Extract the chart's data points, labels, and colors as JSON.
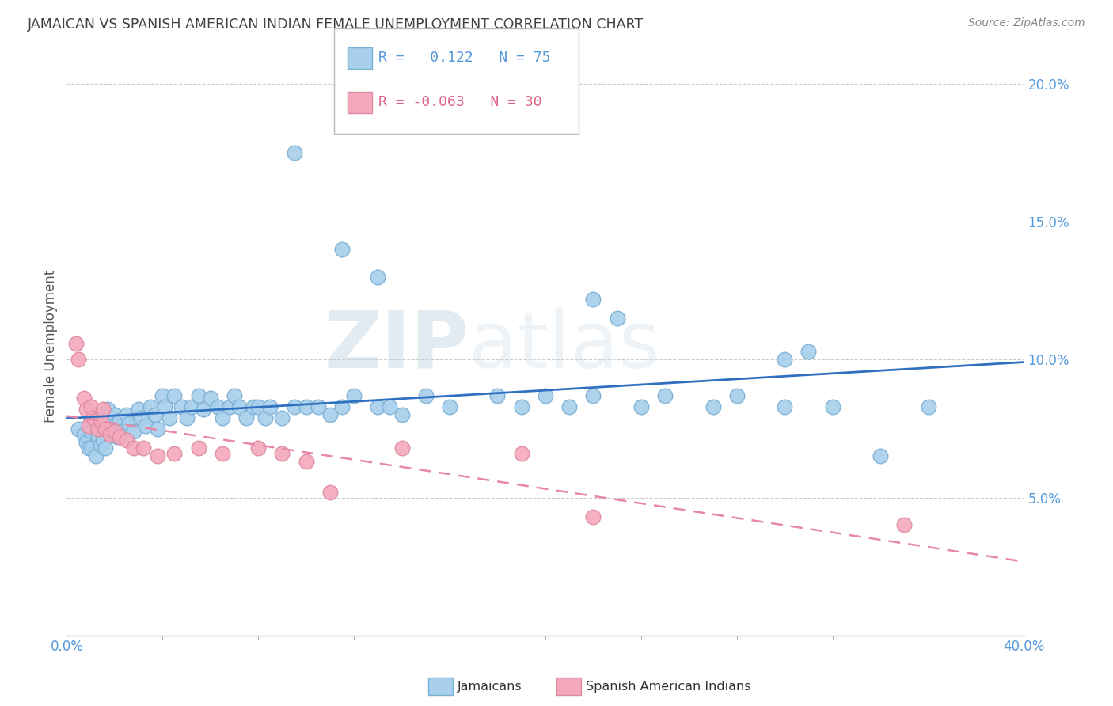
{
  "title": "JAMAICAN VS SPANISH AMERICAN INDIAN FEMALE UNEMPLOYMENT CORRELATION CHART",
  "source": "Source: ZipAtlas.com",
  "ylabel": "Female Unemployment",
  "xlim": [
    0.0,
    0.4
  ],
  "ylim": [
    0.0,
    0.21
  ],
  "yticks": [
    0.05,
    0.1,
    0.15,
    0.2
  ],
  "r_jamaican": 0.122,
  "n_jamaican": 75,
  "r_spanish": -0.063,
  "n_spanish": 30,
  "jamaican_color": "#A8CFEC",
  "jamaican_edge": "#7AAFD4",
  "spanish_color": "#F4A8BC",
  "spanish_edge": "#DC8AA0",
  "line_jamaican_color": "#3070C0",
  "line_spanish_color": "#E888A8",
  "background_color": "#FFFFFF",
  "grid_color": "#CCCCCC",
  "title_color": "#404040",
  "axis_color": "#5599DD",
  "watermark_color": "#C8D8EC",
  "jamaicans_x": [
    0.005,
    0.007,
    0.008,
    0.009,
    0.01,
    0.01,
    0.01,
    0.012,
    0.013,
    0.014,
    0.015,
    0.015,
    0.016,
    0.017,
    0.018,
    0.019,
    0.02,
    0.02,
    0.021,
    0.022,
    0.023,
    0.025,
    0.026,
    0.028,
    0.03,
    0.031,
    0.033,
    0.035,
    0.037,
    0.038,
    0.04,
    0.041,
    0.043,
    0.045,
    0.048,
    0.05,
    0.052,
    0.055,
    0.057,
    0.06,
    0.063,
    0.065,
    0.068,
    0.07,
    0.072,
    0.075,
    0.078,
    0.08,
    0.083,
    0.085,
    0.09,
    0.095,
    0.1,
    0.105,
    0.11,
    0.115,
    0.12,
    0.13,
    0.135,
    0.14,
    0.15,
    0.16,
    0.18,
    0.19,
    0.2,
    0.21,
    0.22,
    0.24,
    0.25,
    0.27,
    0.28,
    0.3,
    0.32,
    0.34,
    0.36
  ],
  "jamaicans_y": [
    0.075,
    0.073,
    0.07,
    0.068,
    0.078,
    0.074,
    0.068,
    0.065,
    0.072,
    0.069,
    0.075,
    0.071,
    0.068,
    0.082,
    0.079,
    0.073,
    0.08,
    0.076,
    0.072,
    0.078,
    0.074,
    0.08,
    0.077,
    0.074,
    0.082,
    0.079,
    0.076,
    0.083,
    0.08,
    0.075,
    0.087,
    0.083,
    0.079,
    0.087,
    0.083,
    0.079,
    0.083,
    0.087,
    0.082,
    0.086,
    0.083,
    0.079,
    0.083,
    0.087,
    0.083,
    0.079,
    0.083,
    0.083,
    0.079,
    0.083,
    0.079,
    0.083,
    0.083,
    0.083,
    0.08,
    0.083,
    0.087,
    0.083,
    0.083,
    0.08,
    0.087,
    0.083,
    0.087,
    0.083,
    0.087,
    0.083,
    0.087,
    0.083,
    0.087,
    0.083,
    0.087,
    0.083,
    0.083,
    0.065,
    0.083
  ],
  "jamaicans_y_outliers": [
    0.175,
    0.14,
    0.13,
    0.122,
    0.115,
    0.103,
    0.1
  ],
  "jamaicans_x_outliers": [
    0.095,
    0.115,
    0.13,
    0.22,
    0.23,
    0.31,
    0.3
  ],
  "spanish_x": [
    0.004,
    0.005,
    0.007,
    0.008,
    0.009,
    0.01,
    0.011,
    0.012,
    0.013,
    0.014,
    0.015,
    0.016,
    0.018,
    0.02,
    0.022,
    0.025,
    0.028,
    0.032,
    0.038,
    0.045,
    0.055,
    0.065,
    0.08,
    0.09,
    0.1,
    0.11,
    0.14,
    0.19,
    0.22,
    0.35
  ],
  "spanish_y": [
    0.106,
    0.1,
    0.086,
    0.082,
    0.076,
    0.083,
    0.079,
    0.078,
    0.075,
    0.078,
    0.082,
    0.075,
    0.073,
    0.074,
    0.072,
    0.071,
    0.068,
    0.068,
    0.065,
    0.066,
    0.068,
    0.066,
    0.068,
    0.066,
    0.063,
    0.052,
    0.068,
    0.066,
    0.043,
    0.04
  ]
}
